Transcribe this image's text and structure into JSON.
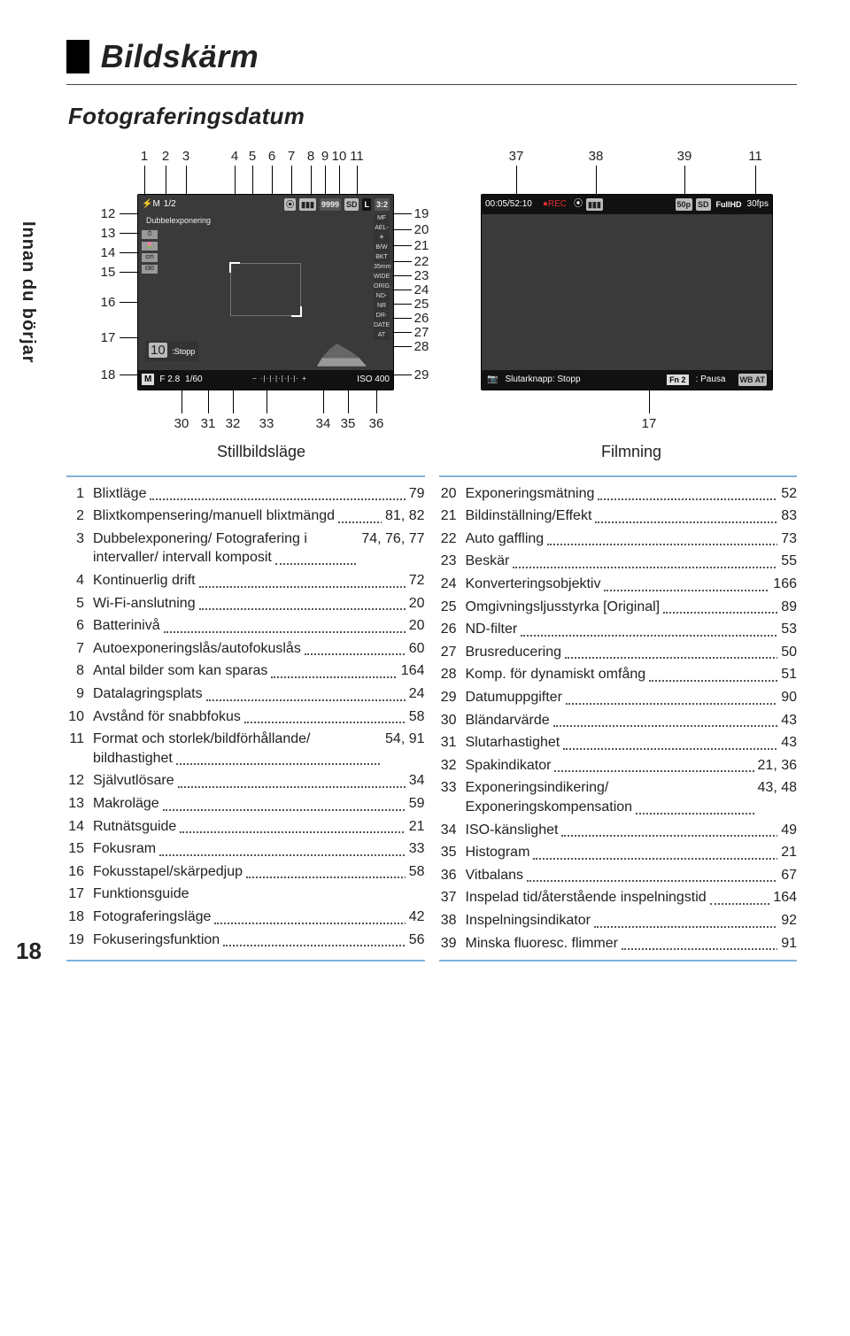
{
  "page_number": "18",
  "sidebar_text": "Innan du börjar",
  "title": "Bildskärm",
  "section": "Fotograferingsdatum",
  "colors": {
    "accent_rule": "#7fb2dc",
    "text": "#222222",
    "lcd_bg": "#3a3a3a",
    "lcd_bottom_bg": "#111111",
    "badge_bg": "#bbbbbb",
    "rec_red": "#e03030"
  },
  "still": {
    "caption": "Stillbildsläge",
    "top_labels": [
      "1",
      "2",
      "3",
      "4",
      "5",
      "6",
      "7",
      "8",
      "9",
      "10",
      "11"
    ],
    "left_labels": [
      "12",
      "13",
      "14",
      "15",
      "16",
      "17",
      "18"
    ],
    "right_labels": [
      "19",
      "20",
      "21",
      "22",
      "23",
      "24",
      "25",
      "26",
      "27",
      "28",
      "29"
    ],
    "bottom_labels": [
      "30",
      "31",
      "32",
      "33",
      "34",
      "35",
      "36"
    ],
    "top_row": {
      "flash": "⚡M",
      "ratio": "1/2",
      "wifi": "⦿",
      "batt": "▮▮▮",
      "count": "9999",
      "sd": "SD",
      "size": "L",
      "aspect": "3:2"
    },
    "overlay_text": "Dubbelexponering",
    "left_icons": [
      "⏱",
      "🌷",
      "cm",
      "t30"
    ],
    "right_icons": [
      "MF",
      "AEL-AFL",
      "☀",
      "B/W",
      "BKT",
      "35mm",
      "WIDE",
      "ORIG.",
      "ND-AT",
      "NR",
      "DR-AT",
      "DATE",
      "AT"
    ],
    "stopp_badge": {
      "count": "10",
      "text": ":Stopp"
    },
    "bottom": {
      "mode": "M",
      "fnum": "F 2.8",
      "shutter": "1/60",
      "ev_scale": "−  ·|·|·|·|·|·|·  +",
      "iso": "ISO 400"
    }
  },
  "film": {
    "caption": "Filmning",
    "top_labels": [
      "37",
      "38",
      "39",
      "11"
    ],
    "bottom_labels": [
      "17"
    ],
    "top_row": {
      "time": "00:05/52:10",
      "rec": "●REC",
      "wifi": "⦿",
      "batt": "▮▮▮",
      "rate": "50p",
      "sd": "SD",
      "res": "FullHD",
      "fps": "30fps"
    },
    "bottom": {
      "left_icon": "📷",
      "left_text": "Slutarknapp: Stopp",
      "fn": "Fn 2",
      "right_text": ": Pausa",
      "wb": "WB AT"
    }
  },
  "legend_left": [
    {
      "n": "1",
      "t": "Blixtläge",
      "p": "79"
    },
    {
      "n": "2",
      "t": "Blixtkompensering/manuell blixtmängd",
      "p": "81, 82"
    },
    {
      "n": "3",
      "t": "Dubbelexponering/ Fotografering i intervaller/ intervall komposit",
      "p": "74, 76, 77"
    },
    {
      "n": "4",
      "t": "Kontinuerlig drift",
      "p": "72"
    },
    {
      "n": "5",
      "t": "Wi-Fi-anslutning",
      "p": "20"
    },
    {
      "n": "6",
      "t": "Batterinivå",
      "p": "20"
    },
    {
      "n": "7",
      "t": "Autoexponeringslås/autofokuslås",
      "p": "60"
    },
    {
      "n": "8",
      "t": "Antal bilder som kan sparas",
      "p": "164"
    },
    {
      "n": "9",
      "t": "Datalagringsplats",
      "p": "24"
    },
    {
      "n": "10",
      "t": "Avstånd för snabbfokus",
      "p": "58"
    },
    {
      "n": "11",
      "t": "Format och storlek/bildförhållande/ bildhastighet",
      "p": "54, 91"
    },
    {
      "n": "12",
      "t": "Självutlösare",
      "p": "34"
    },
    {
      "n": "13",
      "t": "Makroläge",
      "p": "59"
    },
    {
      "n": "14",
      "t": "Rutnätsguide",
      "p": "21"
    },
    {
      "n": "15",
      "t": "Fokusram",
      "p": "33"
    },
    {
      "n": "16",
      "t": "Fokusstapel/skärpedjup",
      "p": "58"
    },
    {
      "n": "17",
      "t": "Funktionsguide",
      "p": ""
    },
    {
      "n": "18",
      "t": "Fotograferingsläge",
      "p": "42"
    },
    {
      "n": "19",
      "t": "Fokuseringsfunktion",
      "p": "56"
    }
  ],
  "legend_right": [
    {
      "n": "20",
      "t": "Exponeringsmätning",
      "p": "52"
    },
    {
      "n": "21",
      "t": "Bildinställning/Effekt",
      "p": "83"
    },
    {
      "n": "22",
      "t": "Auto gaffling",
      "p": "73"
    },
    {
      "n": "23",
      "t": "Beskär",
      "p": "55"
    },
    {
      "n": "24",
      "t": "Konverteringsobjektiv",
      "p": "166"
    },
    {
      "n": "25",
      "t": "Omgivningsljusstyrka [Original]",
      "p": "89"
    },
    {
      "n": "26",
      "t": "ND-filter",
      "p": "53"
    },
    {
      "n": "27",
      "t": "Brusreducering",
      "p": "50"
    },
    {
      "n": "28",
      "t": "Komp. för dynamiskt omfång",
      "p": "51"
    },
    {
      "n": "29",
      "t": "Datumuppgifter",
      "p": "90"
    },
    {
      "n": "30",
      "t": "Bländarvärde",
      "p": "43"
    },
    {
      "n": "31",
      "t": "Slutarhastighet",
      "p": "43"
    },
    {
      "n": "32",
      "t": "Spakindikator",
      "p": "21, 36"
    },
    {
      "n": "33",
      "t": "Exponeringsindikering/ Exponeringskompensation",
      "p": "43, 48"
    },
    {
      "n": "34",
      "t": "ISO-känslighet",
      "p": "49"
    },
    {
      "n": "35",
      "t": "Histogram",
      "p": "21"
    },
    {
      "n": "36",
      "t": "Vitbalans",
      "p": "67"
    },
    {
      "n": "37",
      "t": "Inspelad tid/återstående inspelningstid",
      "p": "164"
    },
    {
      "n": "38",
      "t": "Inspelningsindikator",
      "p": "92"
    },
    {
      "n": "39",
      "t": "Minska fluoresc. flimmer",
      "p": "91"
    }
  ]
}
